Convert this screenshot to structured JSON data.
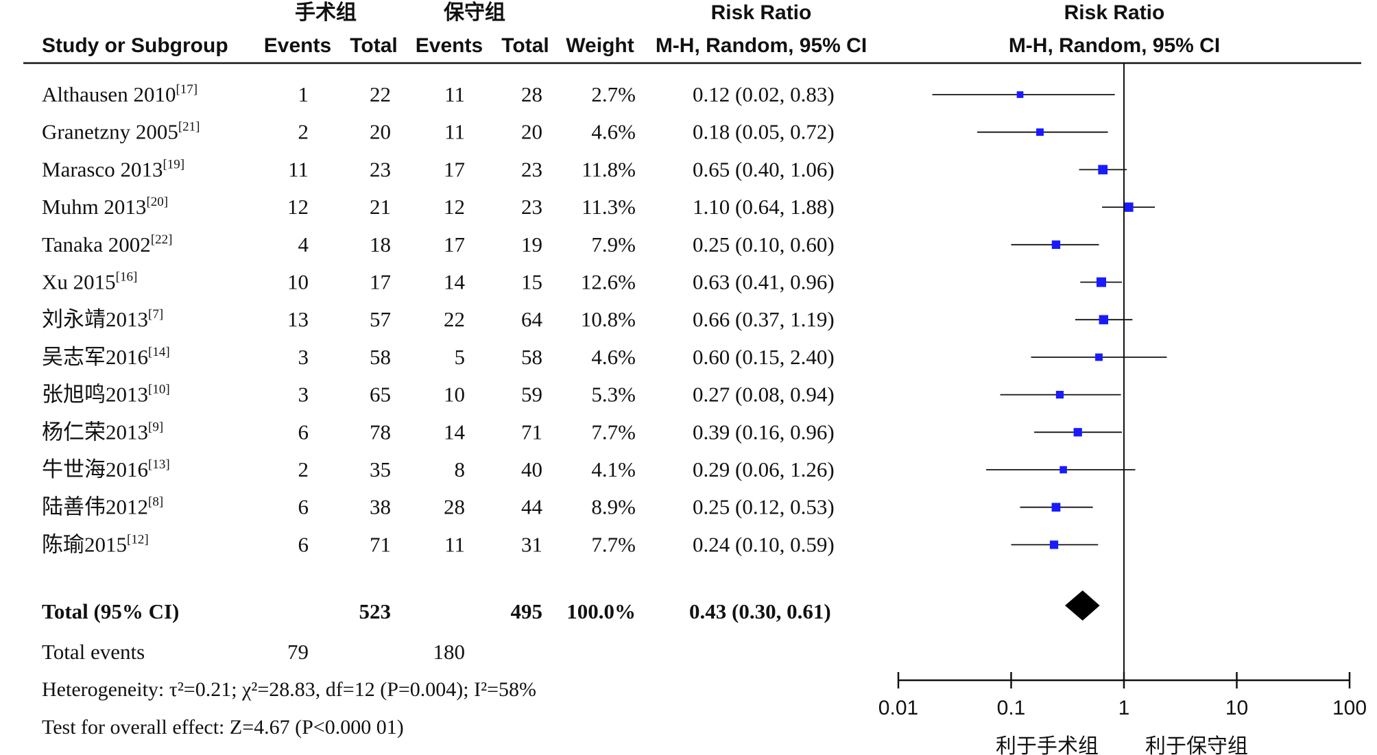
{
  "header": {
    "group1_name": "手术组",
    "group2_name": "保守组",
    "study_col": "Study or Subgroup",
    "events_label": "Events",
    "total_label": "Total",
    "weight_label": "Weight",
    "rr_title": "Risk Ratio",
    "rr_method": "M-H, Random, 95% CI",
    "plot_title": "Risk Ratio",
    "plot_method": "M-H, Random, 95% CI"
  },
  "chart_data": {
    "type": "forest",
    "measure": "Risk Ratio",
    "x_scale": "log",
    "x_ticks": [
      "0.01",
      "0.1",
      "1",
      "10",
      "100"
    ],
    "xlim": [
      0.01,
      100
    ],
    "null_line": 1,
    "favours_left": "利于手术组",
    "favours_right": "利于保守组",
    "studies": [
      {
        "name": "Althausen 2010",
        "ref": "[17]",
        "e1": "1",
        "n1": "22",
        "e2": "11",
        "n2": "28",
        "weight": "2.7%",
        "ci_text": "0.12 (0.02, 0.83)",
        "rr": 0.12,
        "lo": 0.02,
        "hi": 0.83
      },
      {
        "name": "Granetzny 2005",
        "ref": "[21]",
        "e1": "2",
        "n1": "20",
        "e2": "11",
        "n2": "20",
        "weight": "4.6%",
        "ci_text": "0.18 (0.05, 0.72)",
        "rr": 0.18,
        "lo": 0.05,
        "hi": 0.72
      },
      {
        "name": "Marasco 2013",
        "ref": "[19]",
        "e1": "11",
        "n1": "23",
        "e2": "17",
        "n2": "23",
        "weight": "11.8%",
        "ci_text": "0.65 (0.40, 1.06)",
        "rr": 0.65,
        "lo": 0.4,
        "hi": 1.06
      },
      {
        "name": "Muhm 2013",
        "ref": "[20]",
        "e1": "12",
        "n1": "21",
        "e2": "12",
        "n2": "23",
        "weight": "11.3%",
        "ci_text": "1.10 (0.64, 1.88)",
        "rr": 1.1,
        "lo": 0.64,
        "hi": 1.88
      },
      {
        "name": "Tanaka 2002",
        "ref": "[22]",
        "e1": "4",
        "n1": "18",
        "e2": "17",
        "n2": "19",
        "weight": "7.9%",
        "ci_text": "0.25 (0.10, 0.60)",
        "rr": 0.25,
        "lo": 0.1,
        "hi": 0.6
      },
      {
        "name": "Xu 2015",
        "ref": "[16]",
        "e1": "10",
        "n1": "17",
        "e2": "14",
        "n2": "15",
        "weight": "12.6%",
        "ci_text": "0.63 (0.41, 0.96)",
        "rr": 0.63,
        "lo": 0.41,
        "hi": 0.96
      },
      {
        "name": "刘永靖2013",
        "ref": "[7]",
        "e1": "13",
        "n1": "57",
        "e2": "22",
        "n2": "64",
        "weight": "10.8%",
        "ci_text": "0.66 (0.37, 1.19)",
        "rr": 0.66,
        "lo": 0.37,
        "hi": 1.19
      },
      {
        "name": "吴志军2016",
        "ref": "[14]",
        "e1": "3",
        "n1": "58",
        "e2": "5",
        "n2": "58",
        "weight": "4.6%",
        "ci_text": "0.60 (0.15, 2.40)",
        "rr": 0.6,
        "lo": 0.15,
        "hi": 2.4
      },
      {
        "name": "张旭鸣2013",
        "ref": "[10]",
        "e1": "3",
        "n1": "65",
        "e2": "10",
        "n2": "59",
        "weight": "5.3%",
        "ci_text": "0.27 (0.08, 0.94)",
        "rr": 0.27,
        "lo": 0.08,
        "hi": 0.94
      },
      {
        "name": "杨仁荣2013",
        "ref": "[9]",
        "e1": "6",
        "n1": "78",
        "e2": "14",
        "n2": "71",
        "weight": "7.7%",
        "ci_text": "0.39 (0.16, 0.96)",
        "rr": 0.39,
        "lo": 0.16,
        "hi": 0.96
      },
      {
        "name": "牛世海2016",
        "ref": "[13]",
        "e1": "2",
        "n1": "35",
        "e2": "8",
        "n2": "40",
        "weight": "4.1%",
        "ci_text": "0.29 (0.06, 1.26)",
        "rr": 0.29,
        "lo": 0.06,
        "hi": 1.26
      },
      {
        "name": "陆善伟2012",
        "ref": "[8]",
        "e1": "6",
        "n1": "38",
        "e2": "28",
        "n2": "44",
        "weight": "8.9%",
        "ci_text": "0.25 (0.12, 0.53)",
        "rr": 0.25,
        "lo": 0.12,
        "hi": 0.53
      },
      {
        "name": "陈瑜2015",
        "ref": "[12]",
        "e1": "6",
        "n1": "71",
        "e2": "11",
        "n2": "31",
        "weight": "7.7%",
        "ci_text": "0.24 (0.10, 0.59)",
        "rr": 0.24,
        "lo": 0.1,
        "hi": 0.59
      }
    ],
    "pooled": {
      "label": "Total (95% CI)",
      "n1": "523",
      "n2": "495",
      "weight": "100.0%",
      "ci_text": "0.43 (0.30, 0.61)",
      "rr": 0.43,
      "lo": 0.3,
      "hi": 0.61
    },
    "total_events": {
      "label": "Total events",
      "e1": "79",
      "e2": "180"
    },
    "heterogeneity": "Heterogeneity: τ²=0.21; χ²=28.83, df=12 (P=0.004); I²=58%",
    "overall_effect": "Test for overall effect: Z=4.67 (P<0.000 01)"
  },
  "colors": {
    "box": "#1a1aff",
    "line": "#111111",
    "diamond": "#000000"
  }
}
